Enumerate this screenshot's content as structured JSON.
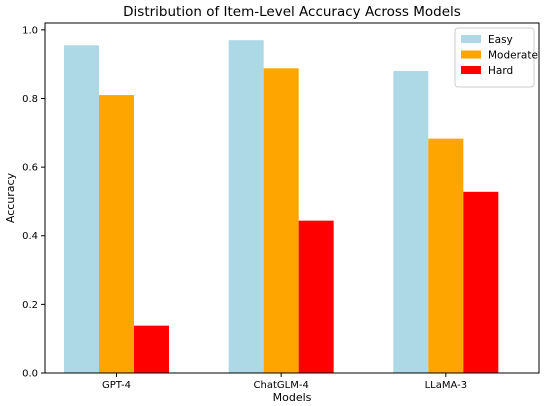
{
  "chart_data": {
    "type": "bar",
    "title": "Distribution of Item-Level Accuracy Across Models",
    "xlabel": "Models",
    "ylabel": "Accuracy",
    "categories": [
      "GPT-4",
      "ChatGLM-4",
      "LLaMA-3"
    ],
    "series": [
      {
        "name": "Easy",
        "color": "#add8e6",
        "values": [
          0.955,
          0.97,
          0.88
        ]
      },
      {
        "name": "Moderate",
        "color": "#ffa500",
        "values": [
          0.81,
          0.888,
          0.683
        ]
      },
      {
        "name": "Hard",
        "color": "#ff0000",
        "values": [
          0.138,
          0.444,
          0.528
        ]
      }
    ],
    "ylim": [
      0,
      1.02
    ],
    "yticks": [
      "0.0",
      "0.2",
      "0.4",
      "0.6",
      "0.8",
      "1.0"
    ],
    "grid": false,
    "legend_position": "top-right"
  }
}
